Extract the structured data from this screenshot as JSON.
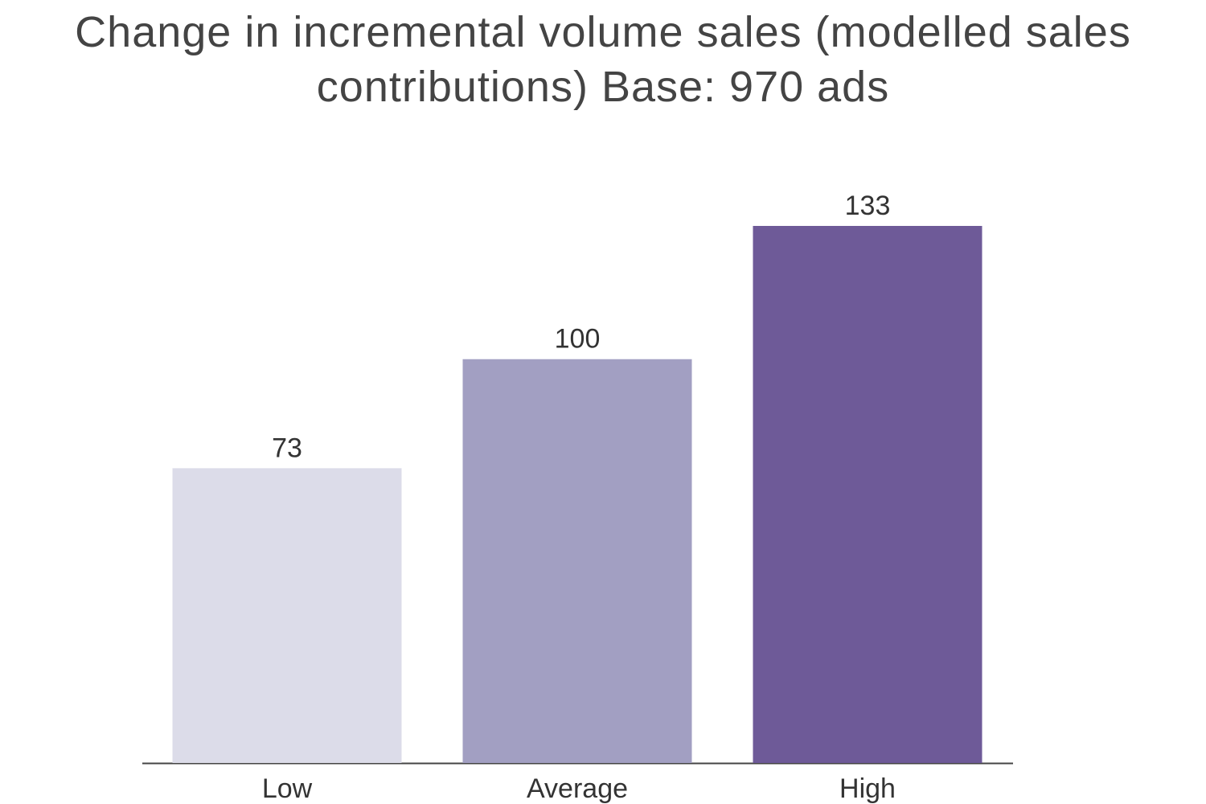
{
  "chart_data": {
    "type": "bar",
    "title": "Change in incremental volume sales (modelled sales contributions) Base:  970 ads",
    "categories": [
      "Low",
      "Average",
      "High"
    ],
    "values": [
      73,
      100,
      133
    ],
    "colors": [
      "#dcdce9",
      "#a29fc2",
      "#6e5a98"
    ]
  }
}
